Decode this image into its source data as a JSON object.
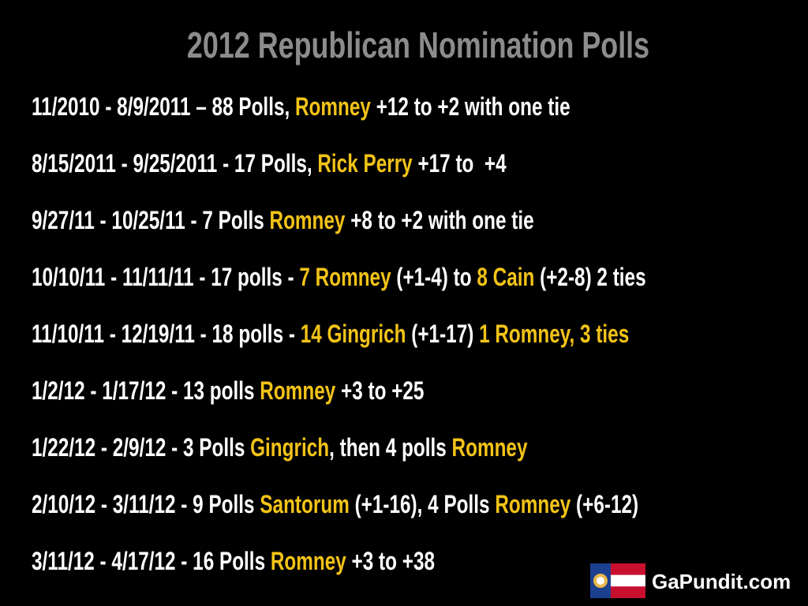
{
  "title": "2012 Republican Nomination Polls",
  "lines": [
    [
      {
        "text": "11/2010 - 8/9/2011 – 88 Polls, ",
        "color": "#ffffff"
      },
      {
        "text": "Romney",
        "color": "#f2c318"
      },
      {
        "text": " +12 to +2 with one tie",
        "color": "#ffffff"
      }
    ],
    [
      {
        "text": "8/15/2011 - 9/25/2011 - 17 Polls, ",
        "color": "#ffffff"
      },
      {
        "text": "Rick Perry",
        "color": "#f2c318"
      },
      {
        "text": " +17 to  +4",
        "color": "#ffffff"
      }
    ],
    [
      {
        "text": "9/27/11 - 10/25/11 - 7 Polls ",
        "color": "#ffffff"
      },
      {
        "text": "Romney",
        "color": "#f2c318"
      },
      {
        "text": " +8 to +2 with one tie",
        "color": "#ffffff"
      }
    ],
    [
      {
        "text": "10/10/11 - 11/11/11 - 17 polls - ",
        "color": "#ffffff"
      },
      {
        "text": "7 Romney",
        "color": "#f2c318"
      },
      {
        "text": " (+1-4) to ",
        "color": "#ffffff"
      },
      {
        "text": "8 Cain",
        "color": "#f2c318"
      },
      {
        "text": " (+2-8) 2 ties",
        "color": "#ffffff"
      }
    ],
    [
      {
        "text": "11/10/11 - 12/19/11 - 18 polls - ",
        "color": "#ffffff"
      },
      {
        "text": "14 Gingrich",
        "color": "#f2c318"
      },
      {
        "text": " (+1-17) ",
        "color": "#ffffff"
      },
      {
        "text": "1 Romney, 3 ties",
        "color": "#f2c318"
      }
    ],
    [
      {
        "text": "1/2/12 - 1/17/12 - 13 polls ",
        "color": "#ffffff"
      },
      {
        "text": "Romney",
        "color": "#f2c318"
      },
      {
        "text": " +3 to +25",
        "color": "#ffffff"
      }
    ],
    [
      {
        "text": "1/22/12 - 2/9/12 - 3 Polls ",
        "color": "#ffffff"
      },
      {
        "text": "Gingrich",
        "color": "#f2c318"
      },
      {
        "text": ", then 4 polls ",
        "color": "#ffffff"
      },
      {
        "text": "Romney",
        "color": "#f2c318"
      }
    ],
    [
      {
        "text": "2/10/12 - 3/11/12 - 9 Polls ",
        "color": "#ffffff"
      },
      {
        "text": "Santorum",
        "color": "#f2c318"
      },
      {
        "text": " (+1-16), 4 Polls ",
        "color": "#ffffff"
      },
      {
        "text": "Romney",
        "color": "#f2c318"
      },
      {
        "text": " (+6-12)",
        "color": "#ffffff"
      }
    ],
    [
      {
        "text": "3/11/12 - 4/17/12 - 16 Polls ",
        "color": "#ffffff"
      },
      {
        "text": "Romney",
        "color": "#f2c318"
      },
      {
        "text": " +3 to +38",
        "color": "#ffffff"
      }
    ]
  ],
  "logo": {
    "text": "GaPundit.com"
  }
}
